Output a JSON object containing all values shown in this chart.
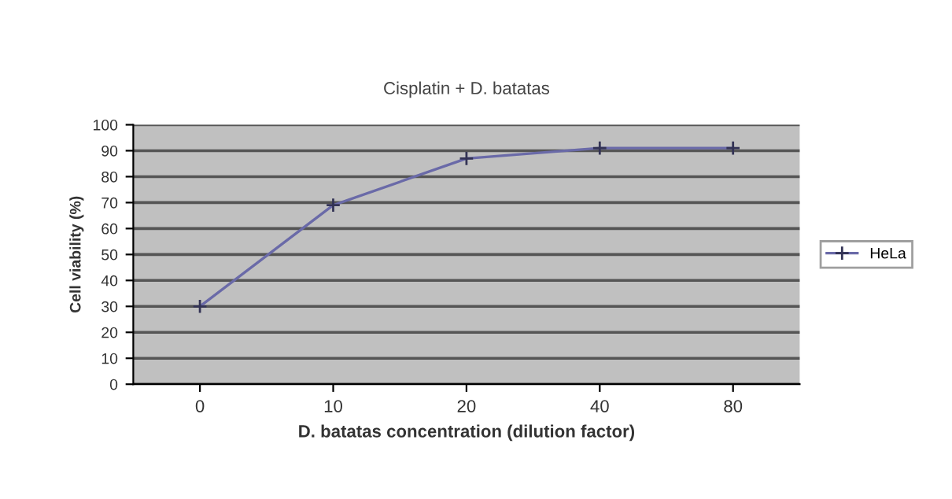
{
  "chart_data": {
    "type": "line",
    "title": "Cisplatin + D. batatas",
    "xlabel": "D. batatas concentration (dilution factor)",
    "ylabel": "Cell viability (%)",
    "categories": [
      "0",
      "10",
      "20",
      "40",
      "80"
    ],
    "series": [
      {
        "name": "HeLa",
        "color": "#6a6aa8",
        "values": [
          30,
          69,
          87,
          91,
          91
        ]
      }
    ],
    "ylim": [
      0,
      100
    ],
    "yticks": [
      0,
      10,
      20,
      30,
      40,
      50,
      60,
      70,
      80,
      90,
      100
    ],
    "grid": "y",
    "legend": "right",
    "marker": "cross",
    "line_style": "solid"
  }
}
